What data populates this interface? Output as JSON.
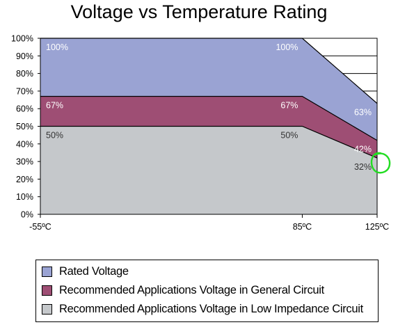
{
  "chart_data": {
    "type": "area",
    "title": "Voltage vs Temperature Rating",
    "xlabel": "",
    "ylabel": "",
    "x": [
      "-55ºC",
      "85ºC",
      "125ºC"
    ],
    "x_values": [
      -55,
      85,
      125
    ],
    "ylim": [
      0,
      100
    ],
    "y_ticks": [
      "0%",
      "10%",
      "20%",
      "30%",
      "40%",
      "50%",
      "60%",
      "70%",
      "80%",
      "90%",
      "100%"
    ],
    "grid": true,
    "legend_position": "bottom",
    "series": [
      {
        "name": "Rated Voltage",
        "values": [
          100,
          100,
          63
        ],
        "labels": [
          "100%",
          "100%",
          "63%"
        ],
        "color": "#9aa3d3",
        "label_color": "#ffffff"
      },
      {
        "name": "Recommended Applications Voltage in General Circuit",
        "values": [
          67,
          67,
          42
        ],
        "labels": [
          "67%",
          "67%",
          "42%"
        ],
        "color": "#9e4e74",
        "label_color": "#ffffff"
      },
      {
        "name": "Recommended Applications Voltage in Low Impedance Circuit",
        "values": [
          50,
          50,
          32
        ],
        "labels": [
          "50%",
          "50%",
          "32%"
        ],
        "color": "#c5c8cb",
        "label_color": "#333333"
      }
    ],
    "annotation": {
      "shape": "hand-drawn circle",
      "color": "#22dd22",
      "around": "32% at 125ºC"
    }
  }
}
